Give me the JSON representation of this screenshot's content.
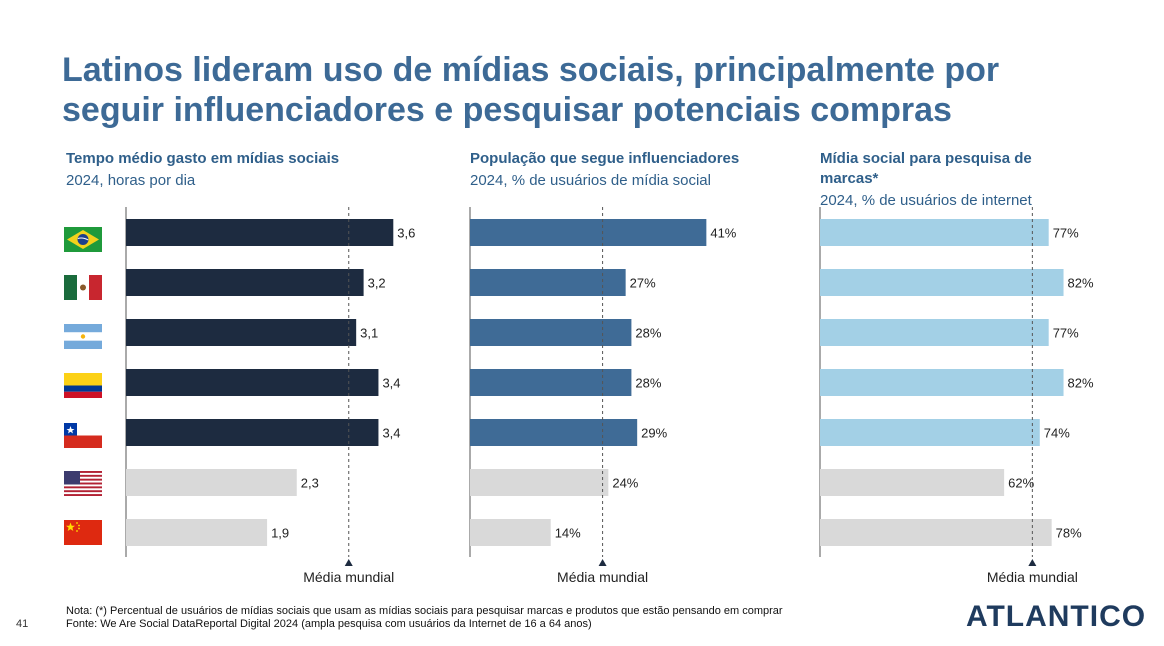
{
  "title_line1": "Latinos lideram uso de mídias sociais, principalmente por",
  "title_line2": "seguir influenciadores e pesquisar potenciais compras",
  "countries": [
    {
      "name": "Brasil",
      "flag": "brazil-flag"
    },
    {
      "name": "México",
      "flag": "mexico-flag"
    },
    {
      "name": "Argentina",
      "flag": "argentina-flag"
    },
    {
      "name": "Colômbia",
      "flag": "colombia-flag"
    },
    {
      "name": "Chile",
      "flag": "chile-flag"
    },
    {
      "name": "EUA",
      "flag": "usa-flag"
    },
    {
      "name": "China",
      "flag": "china-flag"
    }
  ],
  "panels": [
    {
      "title_line1": "Tempo médio gasto em mídias sociais",
      "title_line2": "",
      "subtitle": "2024, horas por dia",
      "world_label": "Média mundial"
    },
    {
      "title_line1": "População que segue influenciadores",
      "title_line2": "",
      "subtitle": "2024, % de usuários de mídia social",
      "world_label": "Média mundial"
    },
    {
      "title_line1": "Mídia social para pesquisa de",
      "title_line2": "marcas*",
      "subtitle": "2024, % de usuários de internet",
      "world_label": "Média mundial"
    }
  ],
  "chart_data": [
    {
      "type": "bar",
      "orientation": "horizontal",
      "title": "Tempo médio gasto em mídias sociais",
      "subtitle": "2024, horas por dia",
      "categories": [
        "Brasil",
        "México",
        "Argentina",
        "Colômbia",
        "Chile",
        "EUA",
        "China"
      ],
      "values": [
        3.6,
        3.2,
        3.1,
        3.4,
        3.4,
        2.3,
        1.9
      ],
      "labels": [
        "3,6",
        "3,2",
        "3,1",
        "3,4",
        "3,4",
        "2,3",
        "1,9"
      ],
      "reference_line": {
        "label": "Média mundial",
        "value": 3.0
      },
      "xlim": [
        0,
        4.0
      ],
      "colors": {
        "latam": "#1d2b40",
        "others": "#d9d9d9"
      }
    },
    {
      "type": "bar",
      "orientation": "horizontal",
      "title": "População que segue influenciadores",
      "subtitle": "2024, % de usuários de mídia social",
      "categories": [
        "Brasil",
        "México",
        "Argentina",
        "Colômbia",
        "Chile",
        "EUA",
        "China"
      ],
      "values": [
        41,
        27,
        28,
        28,
        29,
        24,
        14
      ],
      "labels": [
        "41%",
        "27%",
        "28%",
        "28%",
        "29%",
        "24%",
        "14%"
      ],
      "reference_line": {
        "label": "Média mundial",
        "value": 23
      },
      "xlim": [
        0,
        51
      ],
      "colors": {
        "latam": "#3f6b96",
        "others": "#d9d9d9"
      }
    },
    {
      "type": "bar",
      "orientation": "horizontal",
      "title": "Mídia social para pesquisa de marcas*",
      "subtitle": "2024, % de usuários de internet",
      "categories": [
        "Brasil",
        "México",
        "Argentina",
        "Colômbia",
        "Chile",
        "EUA",
        "China"
      ],
      "values": [
        77,
        82,
        77,
        82,
        74,
        62,
        78
      ],
      "labels": [
        "77%",
        "82%",
        "77%",
        "82%",
        "74%",
        "62%",
        "78%"
      ],
      "reference_line": {
        "label": "Média mundial",
        "value": 71.5
      },
      "xlim": [
        0,
        100
      ],
      "colors": {
        "latam": "#a3d0e6",
        "others": "#d9d9d9"
      }
    }
  ],
  "footnote_line1": "Nota: (*) Percentual de usuários de mídias sociais que usam as mídias sociais para pesquisar marcas e produtos que estão pensando em comprar",
  "footnote_line2": "Fonte: We Are Social DataReportal Digital 2024 (ampla pesquisa com usuários da Internet de 16 a 64 anos)",
  "page_number": "41",
  "logo_text": "ATLANTICO"
}
